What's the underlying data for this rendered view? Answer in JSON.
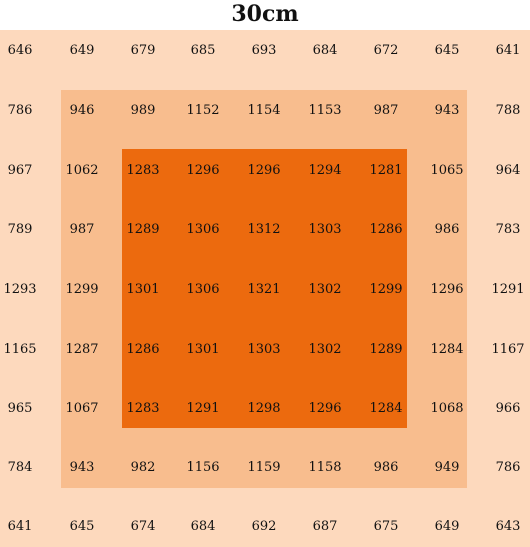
{
  "title": "30cm",
  "colors": {
    "outer": "#fdd9bd",
    "middle": "#f8bd8e",
    "inner": "#ec6a0e"
  },
  "grid": [
    [
      "646",
      "649",
      "679",
      "685",
      "693",
      "684",
      "672",
      "645",
      "641"
    ],
    [
      "786",
      "946",
      "989",
      "1152",
      "1154",
      "1153",
      "987",
      "943",
      "788"
    ],
    [
      "967",
      "1062",
      "1283",
      "1296",
      "1296",
      "1294",
      "1281",
      "1065",
      "964"
    ],
    [
      "789",
      "987",
      "1289",
      "1306",
      "1312",
      "1303",
      "1286",
      "986",
      "783"
    ],
    [
      "1293",
      "1299",
      "1301",
      "1306",
      "1321",
      "1302",
      "1299",
      "1296",
      "1291"
    ],
    [
      "1165",
      "1287",
      "1286",
      "1301",
      "1303",
      "1302",
      "1289",
      "1284",
      "1167"
    ],
    [
      "965",
      "1067",
      "1283",
      "1291",
      "1298",
      "1296",
      "1284",
      "1068",
      "966"
    ],
    [
      "784",
      "943",
      "982",
      "1156",
      "1159",
      "1158",
      "986",
      "949",
      "786"
    ],
    [
      "641",
      "645",
      "674",
      "684",
      "692",
      "687",
      "675",
      "649",
      "643"
    ]
  ]
}
